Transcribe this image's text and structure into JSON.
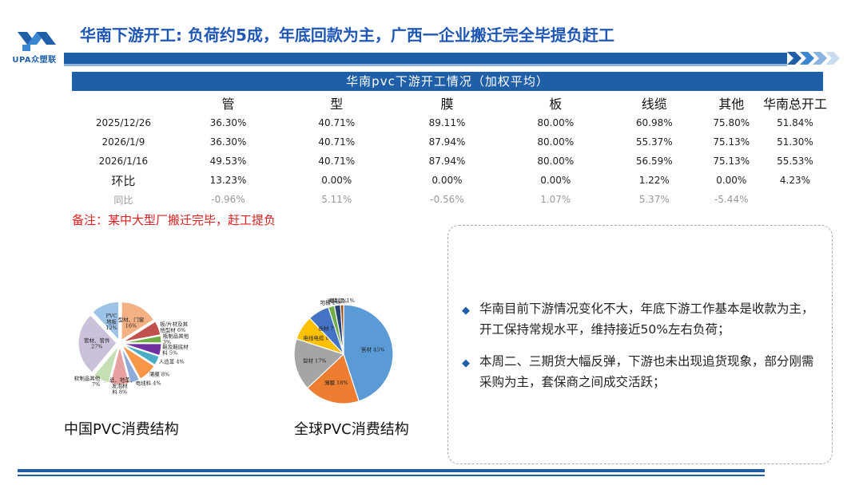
{
  "header": {
    "title": "华南下游开工: 负荷约5成，年底回款为主，广西一企业搬迁完全毕提负赶工",
    "logo_text": "UPA众塑联"
  },
  "table": {
    "title": "华南pvc下游开工情况（加权平均）",
    "columns": [
      "管",
      "型",
      "膜",
      "板",
      "线缆",
      "其他",
      "华南总开工"
    ],
    "rows": [
      {
        "label": "2025/12/26",
        "values": [
          "36.30%",
          "40.71%",
          "89.11%",
          "80.00%",
          "60.98%",
          "75.80%",
          "51.84%"
        ]
      },
      {
        "label": "2026/1/9",
        "values": [
          "36.30%",
          "40.71%",
          "87.94%",
          "80.00%",
          "55.37%",
          "75.13%",
          "51.30%"
        ]
      },
      {
        "label": "2026/1/16",
        "values": [
          "49.53%",
          "40.71%",
          "87.94%",
          "80.00%",
          "56.59%",
          "75.13%",
          "55.53%"
        ]
      },
      {
        "label": "环比",
        "values": [
          "13.23%",
          "0.00%",
          "0.00%",
          "0.00%",
          "1.22%",
          "0.00%",
          "4.23%"
        ]
      },
      {
        "label": "同比",
        "values": [
          "-0.96%",
          "5.11%",
          "-0.56%",
          "1.07%",
          "5.37%",
          "-5.44%",
          ""
        ]
      }
    ]
  },
  "note": "备注：某中大型厂搬迁完毕，赶工提负",
  "bullets": [
    "华南目前下游情况变化不大，年底下游工作基本是收款为主，开工保持常规水平，维持接近50%左右负荷；",
    "本周二、三期货大幅反弹，下游也未出现追货现象，部分刚需采购为主，套保商之间成交活跃；"
  ],
  "colors": {
    "accent": "#1f5fa8",
    "title": "#1f57b5",
    "note": "#e02020"
  },
  "chart_data": [
    {
      "type": "pie",
      "title": "中国PVC消费结构",
      "slices": [
        {
          "label": "PVC地板",
          "value": 12,
          "label_text": "PVC\n地板\n12%",
          "color": "#9dc3e6"
        },
        {
          "label": "型材、门窗",
          "value": 16,
          "label_text": "型材、门窗\n16%",
          "color": "#f4b183"
        },
        {
          "label": "板/片材及其他型材",
          "value": 6,
          "label_text": "板/片材及其\n他型材 6%",
          "color": "#c0504d"
        },
        {
          "label": "瓶制品其他",
          "value": 3,
          "label_text": "瓶制品其他\n3%",
          "color": "#70ad47"
        },
        {
          "label": "鞋及鞋底材料",
          "value": 5,
          "label_text": "鞋及鞋底材\n料 5%",
          "color": "#7030a0"
        },
        {
          "label": "人造革",
          "value": 4,
          "label_text": "人造革 4%",
          "color": "#4bacc6"
        },
        {
          "label": "薄膜",
          "value": 8,
          "label_text": "薄膜 8%",
          "color": "#f79646"
        },
        {
          "label": "电线料",
          "value": 4,
          "label_text": "电线料 4%",
          "color": "#8eaadb"
        },
        {
          "label": "壁纸、地革、发泡材料",
          "value": 8,
          "label_text": "壁纸、地革、\n发泡材\n料 8%",
          "color": "#e6a0a0"
        },
        {
          "label": "软制品其他",
          "value": 7,
          "label_text": "软制品其他\n7%",
          "color": "#c5e0b4"
        },
        {
          "label": "管材、管件",
          "value": 27,
          "label_text": "管材、管件\n27%",
          "color": "#ccc1da"
        }
      ]
    },
    {
      "type": "pie",
      "title": "全球PVC消费结构",
      "slices": [
        {
          "label": "管材",
          "value": 45,
          "label_text": "管材 45%",
          "color": "#5b9bd5"
        },
        {
          "label": "薄膜",
          "value": 18,
          "label_text": "薄膜 18%",
          "color": "#ed7d31"
        },
        {
          "label": "型材",
          "value": 17,
          "label_text": "型材 17%",
          "color": "#a5a5a5"
        },
        {
          "label": "电线电缆",
          "value": 8,
          "label_text": "电线电缆 8%",
          "color": "#ffc000"
        },
        {
          "label": "板材",
          "value": 7,
          "label_text": "板材 7%",
          "color": "#4472c4"
        },
        {
          "label": "地板",
          "value": 2,
          "label_text": "地板 2%",
          "color": "#70ad47"
        },
        {
          "label": "涂料",
          "value": 2,
          "label_text": "涂料 2%",
          "color": "#264478"
        },
        {
          "label": "瓶制品",
          "value": 1,
          "label_text": "瓶制品 1%",
          "color": "#9e480e"
        }
      ]
    }
  ]
}
